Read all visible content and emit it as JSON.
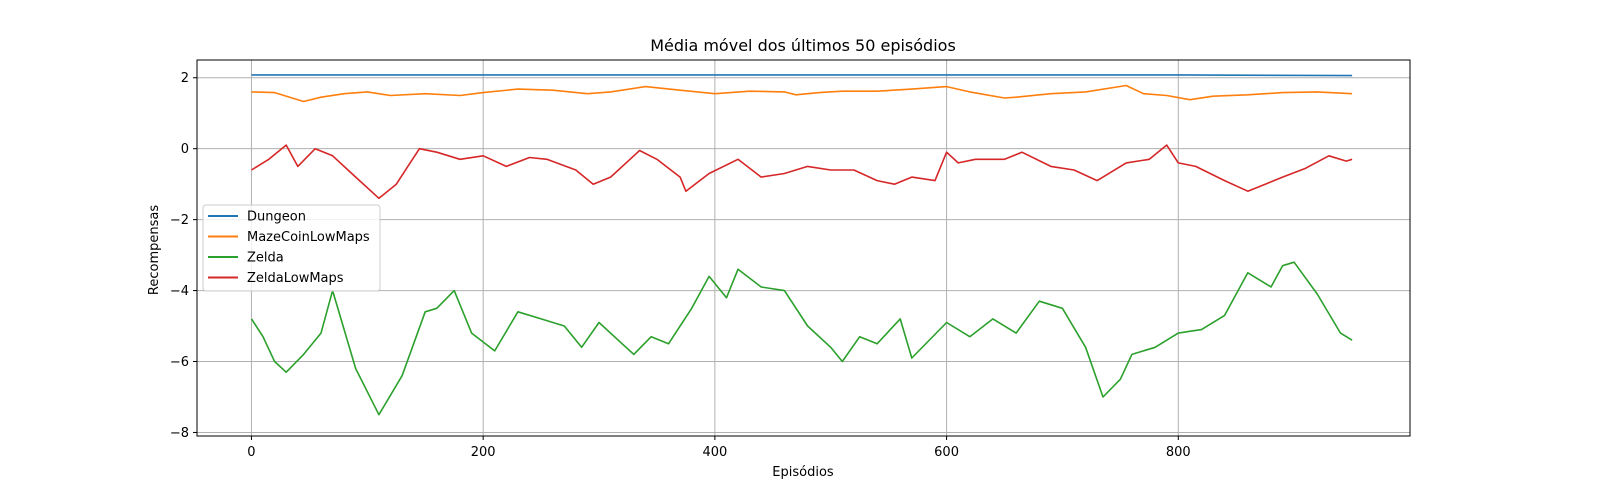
{
  "chart_data": {
    "type": "line",
    "title": "Média móvel dos últimos 50 episódios",
    "xlabel": "Episódios",
    "ylabel": "Recompensas",
    "xlim": [
      -47,
      1000
    ],
    "ylim": [
      -8.1,
      2.5
    ],
    "xticks": [
      0,
      200,
      400,
      600,
      800
    ],
    "yticks": [
      2,
      0,
      -2,
      -4,
      -6,
      -8
    ],
    "xtick_labels": [
      "0",
      "200",
      "400",
      "600",
      "800"
    ],
    "ytick_labels": [
      "2",
      "0",
      "−2",
      "−4",
      "−6",
      "−8"
    ],
    "grid": true,
    "legend_position": "center-left",
    "series": [
      {
        "name": "Dungeon",
        "color": "#1f77b4",
        "x": [
          0,
          200,
          400,
          600,
          800,
          950
        ],
        "y": [
          2.08,
          2.08,
          2.08,
          2.08,
          2.08,
          2.06
        ]
      },
      {
        "name": "MazeCoinLowMaps",
        "color": "#ff7f0e",
        "x": [
          0,
          20,
          45,
          60,
          80,
          100,
          120,
          150,
          180,
          200,
          230,
          260,
          290,
          310,
          340,
          370,
          400,
          430,
          460,
          470,
          490,
          510,
          540,
          570,
          600,
          620,
          650,
          660,
          690,
          720,
          755,
          770,
          790,
          810,
          830,
          860,
          890,
          920,
          950
        ],
        "y": [
          1.6,
          1.58,
          1.33,
          1.45,
          1.55,
          1.6,
          1.5,
          1.55,
          1.5,
          1.58,
          1.68,
          1.65,
          1.55,
          1.6,
          1.75,
          1.65,
          1.55,
          1.62,
          1.6,
          1.52,
          1.58,
          1.62,
          1.62,
          1.68,
          1.75,
          1.6,
          1.43,
          1.45,
          1.55,
          1.6,
          1.78,
          1.55,
          1.5,
          1.38,
          1.48,
          1.52,
          1.58,
          1.6,
          1.55
        ]
      },
      {
        "name": "Zelda",
        "color": "#2ca02c",
        "x": [
          0,
          10,
          20,
          30,
          45,
          60,
          70,
          90,
          110,
          130,
          150,
          160,
          175,
          190,
          210,
          230,
          250,
          270,
          285,
          300,
          320,
          330,
          345,
          360,
          380,
          395,
          410,
          420,
          440,
          460,
          480,
          500,
          510,
          525,
          540,
          560,
          570,
          600,
          620,
          640,
          660,
          680,
          700,
          720,
          735,
          750,
          760,
          780,
          800,
          820,
          840,
          860,
          880,
          890,
          900,
          920,
          940,
          950
        ],
        "y": [
          -4.8,
          -5.3,
          -6.0,
          -6.3,
          -5.8,
          -5.2,
          -4.0,
          -6.2,
          -7.5,
          -6.4,
          -4.6,
          -4.5,
          -4.0,
          -5.2,
          -5.7,
          -4.6,
          -4.8,
          -5.0,
          -5.6,
          -4.9,
          -5.5,
          -5.8,
          -5.3,
          -5.5,
          -4.5,
          -3.6,
          -4.2,
          -3.4,
          -3.9,
          -4.0,
          -5.0,
          -5.6,
          -6.0,
          -5.3,
          -5.5,
          -4.8,
          -5.9,
          -4.9,
          -5.3,
          -4.8,
          -5.2,
          -4.3,
          -4.5,
          -5.6,
          -7.0,
          -6.5,
          -5.8,
          -5.6,
          -5.2,
          -5.1,
          -4.7,
          -3.5,
          -3.9,
          -3.3,
          -3.2,
          -4.1,
          -5.2,
          -5.4
        ]
      },
      {
        "name": "ZeldaLowMaps",
        "color": "#d62728",
        "x": [
          0,
          15,
          30,
          40,
          55,
          70,
          90,
          110,
          125,
          145,
          160,
          180,
          200,
          220,
          240,
          255,
          280,
          295,
          310,
          335,
          350,
          370,
          375,
          395,
          420,
          440,
          460,
          480,
          500,
          520,
          540,
          555,
          570,
          590,
          600,
          610,
          625,
          650,
          665,
          690,
          710,
          730,
          755,
          775,
          790,
          800,
          815,
          840,
          860,
          875,
          890,
          910,
          930,
          945,
          950
        ],
        "y": [
          -0.6,
          -0.3,
          0.1,
          -0.5,
          0.0,
          -0.2,
          -0.8,
          -1.4,
          -1.0,
          0.0,
          -0.1,
          -0.3,
          -0.2,
          -0.5,
          -0.25,
          -0.3,
          -0.6,
          -1.0,
          -0.8,
          -0.05,
          -0.3,
          -0.8,
          -1.2,
          -0.7,
          -0.3,
          -0.8,
          -0.7,
          -0.5,
          -0.6,
          -0.6,
          -0.9,
          -1.0,
          -0.8,
          -0.9,
          -0.1,
          -0.4,
          -0.3,
          -0.3,
          -0.1,
          -0.5,
          -0.6,
          -0.9,
          -0.4,
          -0.3,
          0.1,
          -0.4,
          -0.5,
          -0.9,
          -1.2,
          -1.0,
          -0.8,
          -0.55,
          -0.2,
          -0.35,
          -0.3
        ]
      }
    ]
  }
}
